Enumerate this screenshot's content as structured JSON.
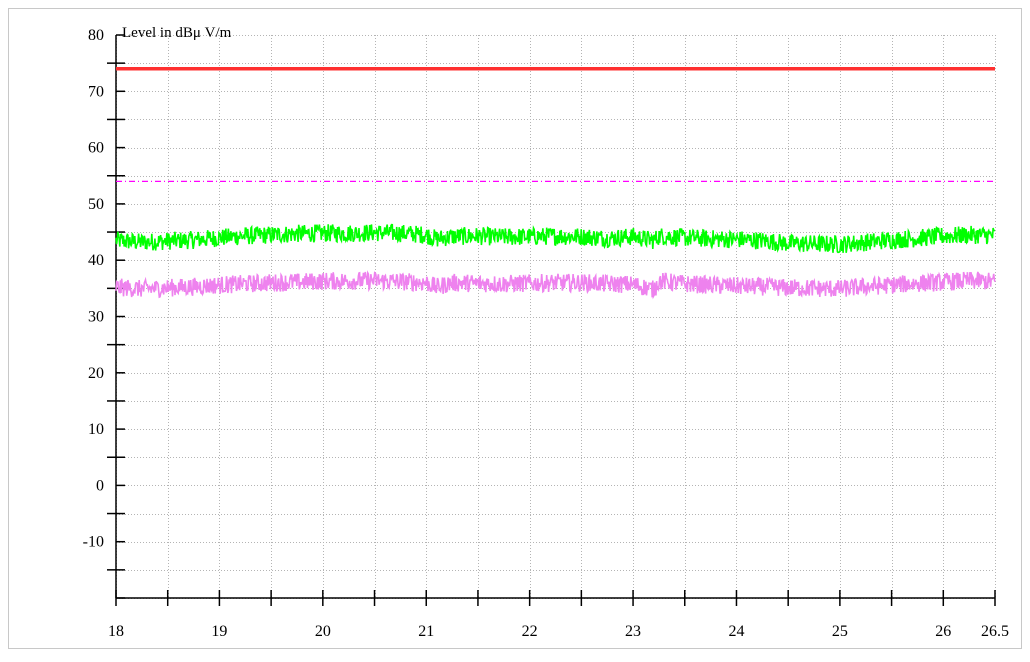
{
  "chart_data": {
    "type": "line",
    "ylabel": "Level in dBμ  V/m",
    "xlabel": "",
    "title": "",
    "xlim": [
      18,
      26.5
    ],
    "ylim": [
      -20,
      80
    ],
    "x_ticks": [
      18,
      19,
      20,
      21,
      22,
      23,
      24,
      25,
      26,
      26.5
    ],
    "x_tick_labels": [
      "18",
      "19",
      "20",
      "21",
      "22",
      "23",
      "24",
      "25",
      "26",
      "26.5"
    ],
    "y_ticks": [
      -10,
      0,
      10,
      20,
      30,
      40,
      50,
      60,
      70,
      80
    ],
    "y_tick_labels": [
      "-10",
      "0",
      "10",
      "20",
      "30",
      "40",
      "50",
      "60",
      "70",
      "80"
    ],
    "grid": true,
    "legend": "none",
    "series": [
      {
        "color": "#ff3030",
        "style": "solid-thick",
        "x": [
          18,
          26.5
        ],
        "y": [
          74,
          74
        ]
      },
      {
        "color": "#ff00ff",
        "style": "dash-dot",
        "x": [
          18,
          26.5
        ],
        "y": [
          54,
          54
        ]
      },
      {
        "color": "#00ff00",
        "style": "noisy",
        "x": [
          18,
          18.25,
          18.5,
          18.75,
          19,
          19.25,
          19.5,
          19.75,
          20,
          20.25,
          20.5,
          20.75,
          21,
          21.1,
          21.25,
          21.5,
          21.75,
          22,
          22.25,
          22.5,
          22.75,
          23,
          23.2,
          23.25,
          23.5,
          23.75,
          24,
          24.25,
          24.5,
          24.75,
          25,
          25.25,
          25.5,
          25.75,
          26,
          26.25,
          26.5
        ],
        "y": [
          43.5,
          43.2,
          43.4,
          43.6,
          44.0,
          44.3,
          44.5,
          44.7,
          44.8,
          44.8,
          44.9,
          44.8,
          44.5,
          43.8,
          44.2,
          44.3,
          44.1,
          44.2,
          44.3,
          44.2,
          43.9,
          44.2,
          43.5,
          44.3,
          44.0,
          43.8,
          43.7,
          43.5,
          43.0,
          42.9,
          42.8,
          43.2,
          43.6,
          43.9,
          44.3,
          44.5,
          44.4
        ]
      },
      {
        "color": "#ee82ee",
        "style": "noisy",
        "x": [
          18,
          18.25,
          18.5,
          18.75,
          19,
          19.25,
          19.5,
          19.75,
          20,
          20.25,
          20.5,
          20.75,
          21,
          21.1,
          21.25,
          21.5,
          21.75,
          22,
          22.25,
          22.5,
          22.75,
          23,
          23.2,
          23.25,
          23.5,
          23.75,
          24,
          24.25,
          24.5,
          24.75,
          25,
          25.25,
          25.5,
          25.75,
          26,
          26.25,
          26.5
        ],
        "y": [
          35.2,
          34.9,
          35.1,
          35.3,
          35.6,
          35.8,
          36.0,
          36.1,
          36.3,
          36.3,
          36.4,
          36.2,
          36.0,
          35.2,
          36.0,
          35.9,
          35.8,
          35.9,
          36.0,
          36.0,
          35.8,
          35.7,
          34.8,
          36.3,
          35.8,
          35.6,
          35.4,
          35.3,
          35.1,
          35.0,
          34.9,
          35.3,
          35.6,
          35.9,
          36.1,
          36.4,
          36.2
        ]
      }
    ]
  }
}
